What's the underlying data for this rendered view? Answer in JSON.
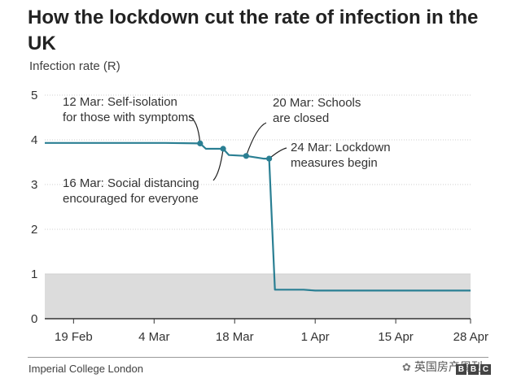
{
  "title": "How the lockdown cut the rate of infection in the UK",
  "source": "Imperial College London",
  "watermark": "英国房产周刊",
  "logo_letters": [
    "B",
    "B",
    "C"
  ],
  "colors": {
    "line": "#2a7f93",
    "shade": "#dcdcdc",
    "grid": "#cfcfcf",
    "axis": "#333333"
  },
  "chart_data": {
    "type": "line",
    "ylabel": "Infection rate (R)",
    "ylim": [
      0,
      5
    ],
    "yticks": [
      0,
      1,
      2,
      3,
      4,
      5
    ],
    "xlim": [
      "2020-02-14",
      "2020-04-28"
    ],
    "xticks": [
      {
        "date": "2020-02-19",
        "label": "19 Feb"
      },
      {
        "date": "2020-03-04",
        "label": "4 Mar"
      },
      {
        "date": "2020-03-18",
        "label": "18 Mar"
      },
      {
        "date": "2020-04-01",
        "label": "1 Apr"
      },
      {
        "date": "2020-04-15",
        "label": "15 Apr"
      },
      {
        "date": "2020-04-28",
        "label": "28 Apr"
      }
    ],
    "shaded_band": [
      0,
      1
    ],
    "series": [
      {
        "values": [
          {
            "x": "2020-02-14",
            "y": 3.93
          },
          {
            "x": "2020-03-06",
            "y": 3.93
          },
          {
            "x": "2020-03-12",
            "y": 3.92
          },
          {
            "x": "2020-03-13",
            "y": 3.8
          },
          {
            "x": "2020-03-16",
            "y": 3.8
          },
          {
            "x": "2020-03-17",
            "y": 3.66
          },
          {
            "x": "2020-03-20",
            "y": 3.64
          },
          {
            "x": "2020-03-23",
            "y": 3.58
          },
          {
            "x": "2020-03-24",
            "y": 3.58
          },
          {
            "x": "2020-03-25",
            "y": 0.65
          },
          {
            "x": "2020-03-30",
            "y": 0.65
          },
          {
            "x": "2020-04-01",
            "y": 0.63
          },
          {
            "x": "2020-04-28",
            "y": 0.63
          }
        ]
      }
    ],
    "events": [
      {
        "date": "2020-03-12",
        "y": 3.92,
        "lines": [
          "12 Mar: Self-isolation",
          "for those with symptoms"
        ]
      },
      {
        "date": "2020-03-16",
        "y": 3.8,
        "lines": [
          "16 Mar: Social distancing",
          "encouraged for everyone"
        ]
      },
      {
        "date": "2020-03-20",
        "y": 3.64,
        "lines": [
          "20 Mar: Schools",
          "are closed"
        ]
      },
      {
        "date": "2020-03-24",
        "y": 3.58,
        "lines": [
          "24 Mar: Lockdown",
          "measures begin"
        ]
      }
    ]
  }
}
